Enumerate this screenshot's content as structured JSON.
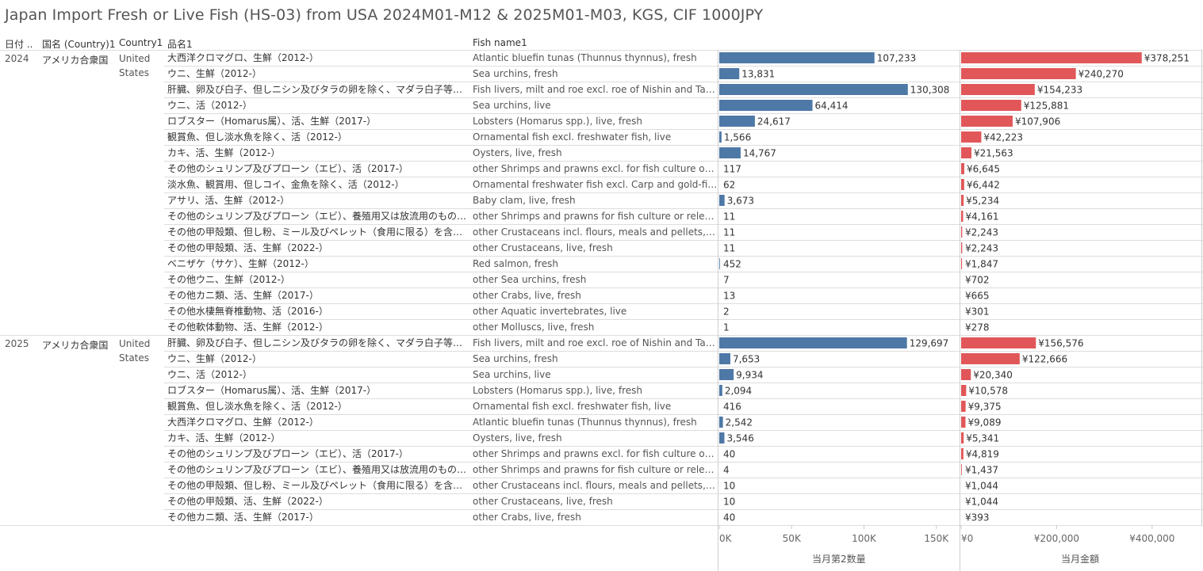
{
  "title": "Japan Import Fresh or Live Fish (HS-03) from USA 2024M01-M12 & 2025M01-M03, KGS, CIF 1000JPY",
  "headers": {
    "date": "日付 ..",
    "country_jp": "国名 (Country)1",
    "country_en": "Country1",
    "item_jp": "品名1",
    "item_en": "Fish name1"
  },
  "colors": {
    "quantity_bar": "#4e79a7",
    "value_bar": "#e15759"
  },
  "groups": [
    {
      "year": "2024",
      "country_jp": "アメリカ合衆国",
      "country_en_1": "United",
      "country_en_2": "States"
    },
    {
      "year": "2025",
      "country_jp": "アメリカ合衆国",
      "country_en_1": "United",
      "country_en_2": "States"
    }
  ],
  "rows": [
    {
      "jp": "大西洋クロマグロ、生鮮（2012-）",
      "en": "Atlantic bluefin tunas (Thunnus thynnus), fresh",
      "qty_label": "107,233",
      "val_label": "¥378,251"
    },
    {
      "jp": "ウニ、生鮮（2012-）",
      "en": "Sea urchins, fresh",
      "qty_label": "13,831",
      "val_label": "¥240,270"
    },
    {
      "jp": "肝臓、卵及び白子、但しニシン及びタラの卵を除く、マダラ白子等、生鮮（201..",
      "en": "Fish livers, milt and roe excl. roe of Nishin and Tara, e..",
      "qty_label": "130,308",
      "val_label": "¥154,233"
    },
    {
      "jp": "ウニ、活（2012-）",
      "en": "Sea urchins, live",
      "qty_label": "64,414",
      "val_label": "¥125,881"
    },
    {
      "jp": "ロブスター（Homarus属）、活、生鮮（2017-）",
      "en": "Lobsters (Homarus spp.), live, fresh",
      "qty_label": "24,617",
      "val_label": "¥107,906"
    },
    {
      "jp": "観賞魚、但し淡水魚を除く、活（2012-）",
      "en": "Ornamental fish excl. freshwater fish, live",
      "qty_label": "1,566",
      "val_label": "¥42,223"
    },
    {
      "jp": "カキ、活、生鮮（2012-）",
      "en": "Oysters, live, fresh",
      "qty_label": "14,767",
      "val_label": "¥21,563"
    },
    {
      "jp": "その他のシュリンプ及びプローン（エビ）、活（2017-）",
      "en": "other Shrimps and prawns excl. for fish culture or rel..",
      "qty_label": "117",
      "val_label": "¥6,645"
    },
    {
      "jp": "淡水魚、観賞用、但しコイ、金魚を除く、活（2012-）",
      "en": "Ornamental freshwater fish excl. Carp and gold-fish, l..",
      "qty_label": "62",
      "val_label": "¥6,442"
    },
    {
      "jp": "アサリ、活、生鮮（2012-）",
      "en": "Baby clam, live, fresh",
      "qty_label": "3,673",
      "val_label": "¥5,234"
    },
    {
      "jp": "その他のシュリンプ及びプローン（エビ）、養殖用又は放流用のもの（クルマエ..",
      "en": "other Shrimps and prawns for fish culture or releasin..",
      "qty_label": "11",
      "val_label": "¥4,161"
    },
    {
      "jp": "その他の甲殻類、但し粉、ミール及びペレット（食用に限る）を含む、活、生鮮..",
      "en": "other Crustaceans incl. flours, meals and pellets, fit f..",
      "qty_label": "11",
      "val_label": "¥2,243"
    },
    {
      "jp": "その他の甲殻類、活、生鮮（2022-）",
      "en": "other Crustaceans, live, fresh",
      "qty_label": "11",
      "val_label": "¥2,243"
    },
    {
      "jp": "ベニザケ（サケ）、生鮮（2012-）",
      "en": "Red salmon, fresh",
      "qty_label": "452",
      "val_label": "¥1,847"
    },
    {
      "jp": "その他ウニ、生鮮（2012-）",
      "en": "other Sea urchins, fresh",
      "qty_label": "7",
      "val_label": "¥702"
    },
    {
      "jp": "その他カニ類、活、生鮮（2017-）",
      "en": "other Crabs, live, fresh",
      "qty_label": "13",
      "val_label": "¥665"
    },
    {
      "jp": "その他水棲無脊椎動物、活（2016-）",
      "en": "other Aquatic invertebrates, live",
      "qty_label": "2",
      "val_label": "¥301"
    },
    {
      "jp": "その他軟体動物、活、生鮮（2012-）",
      "en": "other Molluscs, live, fresh",
      "qty_label": "1",
      "val_label": "¥278"
    },
    {
      "jp": "肝臓、卵及び白子、但しニシン及びタラの卵を除く、マダラ白子等、生鮮（201..",
      "en": "Fish livers, milt and roe excl. roe of Nishin and Tara, e..",
      "qty_label": "129,697",
      "val_label": "¥156,576"
    },
    {
      "jp": "ウニ、生鮮（2012-）",
      "en": "Sea urchins, fresh",
      "qty_label": "7,653",
      "val_label": "¥122,666"
    },
    {
      "jp": "ウニ、活（2012-）",
      "en": "Sea urchins, live",
      "qty_label": "9,934",
      "val_label": "¥20,340"
    },
    {
      "jp": "ロブスター（Homarus属）、活、生鮮（2017-）",
      "en": "Lobsters (Homarus spp.), live, fresh",
      "qty_label": "2,094",
      "val_label": "¥10,578"
    },
    {
      "jp": "観賞魚、但し淡水魚を除く、活（2012-）",
      "en": "Ornamental fish excl. freshwater fish, live",
      "qty_label": "416",
      "val_label": "¥9,375"
    },
    {
      "jp": "大西洋クロマグロ、生鮮（2012-）",
      "en": "Atlantic bluefin tunas (Thunnus thynnus), fresh",
      "qty_label": "2,542",
      "val_label": "¥9,089"
    },
    {
      "jp": "カキ、活、生鮮（2012-）",
      "en": "Oysters, live, fresh",
      "qty_label": "3,546",
      "val_label": "¥5,341"
    },
    {
      "jp": "その他のシュリンプ及びプローン（エビ）、活（2017-）",
      "en": "other Shrimps and prawns excl. for fish culture or rel..",
      "qty_label": "40",
      "val_label": "¥4,819"
    },
    {
      "jp": "その他のシュリンプ及びプローン（エビ）、養殖用又は放流用のもの（クルマエ..",
      "en": "other Shrimps and prawns for fish culture or releasin..",
      "qty_label": "4",
      "val_label": "¥1,437"
    },
    {
      "jp": "その他の甲殻類、但し粉、ミール及びペレット（食用に限る）を含む、活、生鮮..",
      "en": "other Crustaceans incl. flours, meals and pellets, fit f..",
      "qty_label": "10",
      "val_label": "¥1,044"
    },
    {
      "jp": "その他の甲殻類、活、生鮮（2022-）",
      "en": "other Crustaceans, live, fresh",
      "qty_label": "10",
      "val_label": "¥1,044"
    },
    {
      "jp": "その他カニ類、活、生鮮（2017-）",
      "en": "other Crabs, live, fresh",
      "qty_label": "40",
      "val_label": "¥393"
    }
  ],
  "axes": {
    "quantity": {
      "title": "当月第2数量",
      "ticks": [
        "0K",
        "50K",
        "100K",
        "150K"
      ]
    },
    "value": {
      "title": "当月金額",
      "ticks": [
        "¥0",
        "¥200,000",
        "¥400,000"
      ]
    }
  },
  "chart_data": {
    "type": "bar",
    "orientation": "horizontal",
    "title": "Japan Import Fresh or Live Fish (HS-03) from USA 2024M01-M12 & 2025M01-M03, KGS, CIF 1000JPY",
    "group_sizes": [
      18,
      12
    ],
    "series": [
      {
        "name": "当月第2数量",
        "xlim": [
          0,
          160000
        ],
        "values": [
          107233,
          13831,
          130308,
          64414,
          24617,
          1566,
          14767,
          117,
          62,
          3673,
          11,
          11,
          11,
          452,
          7,
          13,
          2,
          1,
          129697,
          7653,
          9934,
          2094,
          416,
          2542,
          3546,
          40,
          4,
          10,
          10,
          40
        ]
      },
      {
        "name": "当月金額",
        "xlim": [
          0,
          485000
        ],
        "values": [
          378251,
          240270,
          154233,
          125881,
          107906,
          42223,
          21563,
          6645,
          6442,
          5234,
          4161,
          2243,
          2243,
          1847,
          702,
          665,
          301,
          278,
          156576,
          122666,
          20340,
          10578,
          9375,
          9089,
          5341,
          4819,
          1437,
          1044,
          1044,
          393
        ]
      }
    ]
  }
}
